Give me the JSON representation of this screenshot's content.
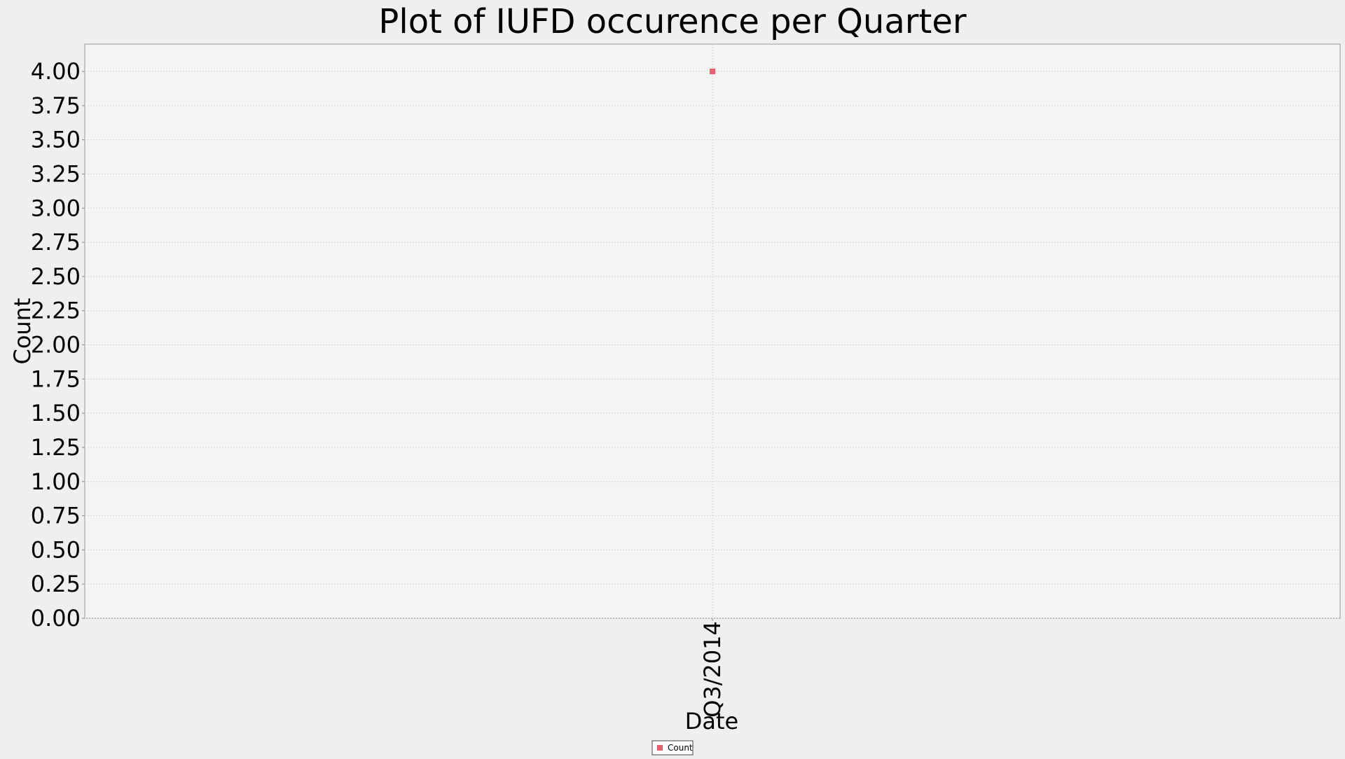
{
  "chart_data": {
    "type": "scatter",
    "title": "Plot of IUFD occurence per Quarter",
    "xlabel": "Date",
    "ylabel": "Count",
    "categories": [
      "Q3/2014"
    ],
    "series": [
      {
        "name": "Count",
        "values": [
          4.0
        ],
        "color": "#e8606e",
        "marker": "square"
      }
    ],
    "ylim": [
      0,
      4.2
    ],
    "yticks": [
      "0.00",
      "0.25",
      "0.50",
      "0.75",
      "1.00",
      "1.25",
      "1.50",
      "1.75",
      "2.00",
      "2.25",
      "2.50",
      "2.75",
      "3.00",
      "3.25",
      "3.50",
      "3.75",
      "4.00"
    ],
    "grid": true,
    "legend_position": "bottom-center",
    "colors": {
      "background": "#efefef",
      "plot_background": "#f4f4f4",
      "grid": "#d8d8d8",
      "axis": "#888888",
      "text": "#000000"
    }
  }
}
